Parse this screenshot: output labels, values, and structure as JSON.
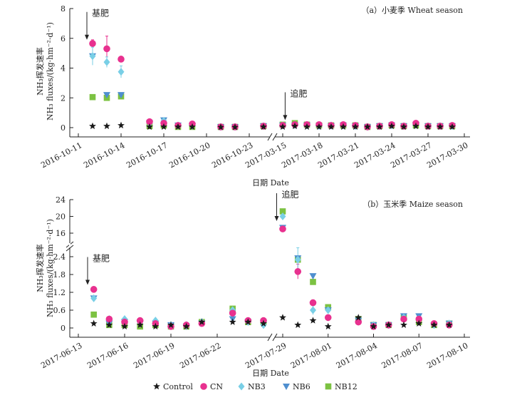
{
  "colors": {
    "Control": "#1a1a1a",
    "CN": "#e8318f",
    "NB3": "#79cfe6",
    "NB6": "#4f8fcf",
    "NB12": "#7cc242"
  },
  "legend": [
    "Control",
    "CN",
    "NB3",
    "NB6",
    "NB12"
  ],
  "chart_data": [
    {
      "type": "scatter",
      "title": "（a）小麦季 Wheat season",
      "xlabel": "日期 Date",
      "ylabel_lines": [
        "NH₃挥发速率",
        "NH₃ fluxes/(kg·hm⁻²·d⁻¹)"
      ],
      "yticks": [
        "0",
        "2",
        "4",
        "6",
        "8"
      ],
      "ylim": [
        0,
        8
      ],
      "xticks": [
        "2016-10-11",
        "2016-10-14",
        "2016-10-17",
        "2016-10-20",
        "2016-10-23",
        "2017-03-15",
        "2017-03-18",
        "2017-03-21",
        "2017-03-24",
        "2017-03-27",
        "2017-03-30"
      ],
      "segments": [
        {
          "start": "2016-10-11",
          "end": "2016-10-24"
        },
        {
          "start": "2017-03-15",
          "end": "2017-03-30"
        }
      ],
      "annotations": [
        {
          "text": "基肥",
          "date": "2016-10-11.6",
          "y": 7.2
        },
        {
          "text": "追肥",
          "date": "2017-03-15.2",
          "y": 1.8
        }
      ],
      "dates": [
        "2016-10-12",
        "2016-10-13",
        "2016-10-14",
        "2016-10-16",
        "2016-10-17",
        "2016-10-18",
        "2016-10-19",
        "2016-10-21",
        "2016-10-22",
        "2016-10-24",
        "2017-03-15",
        "2017-03-16",
        "2017-03-17",
        "2017-03-18",
        "2017-03-19",
        "2017-03-20",
        "2017-03-21",
        "2017-03-22",
        "2017-03-23",
        "2017-03-24",
        "2017-03-25",
        "2017-03-26",
        "2017-03-27",
        "2017-03-28",
        "2017-03-29"
      ],
      "series": [
        {
          "name": "Control",
          "values": [
            0.1,
            0.1,
            0.15,
            0.05,
            0.05,
            0.05,
            0.05,
            0.03,
            0.03,
            0.05,
            0.05,
            0.1,
            0.05,
            0.05,
            0.05,
            0.05,
            0.05,
            0.05,
            0.05,
            0.1,
            0.05,
            0.1,
            0.05,
            0.05,
            0.05
          ]
        },
        {
          "name": "CN",
          "values": [
            5.65,
            5.3,
            4.6,
            0.4,
            0.3,
            0.15,
            0.25,
            0.05,
            0.05,
            0.1,
            0.15,
            0.2,
            0.2,
            0.2,
            0.15,
            0.2,
            0.15,
            0.05,
            0.1,
            0.2,
            0.1,
            0.3,
            0.1,
            0.1,
            0.15
          ]
        },
        {
          "name": "NB3",
          "values": [
            4.8,
            4.4,
            3.75,
            0.3,
            0.45,
            0.15,
            0.2,
            0.05,
            0.05,
            0.1,
            0.15,
            0.2,
            0.15,
            0.1,
            0.15,
            0.15,
            0.1,
            0.05,
            0.1,
            0.15,
            0.1,
            0.2,
            0.1,
            0.1,
            0.1
          ]
        },
        {
          "name": "NB6",
          "values": [
            4.8,
            2.2,
            2.2,
            0.3,
            0.5,
            0.15,
            0.1,
            0.05,
            0.05,
            0.1,
            0.15,
            0.15,
            0.15,
            0.1,
            0.1,
            0.15,
            0.1,
            0.05,
            0.1,
            0.15,
            0.1,
            0.2,
            0.1,
            0.1,
            0.1
          ]
        },
        {
          "name": "NB12",
          "values": [
            2.05,
            2.0,
            2.1,
            0.1,
            0.15,
            0.05,
            0.05,
            0.05,
            0.05,
            0.1,
            0.2,
            0.3,
            0.2,
            0.15,
            0.15,
            0.15,
            0.15,
            0.05,
            0.1,
            0.15,
            0.1,
            0.15,
            0.1,
            0.1,
            0.1
          ]
        }
      ],
      "errors": {
        "CN": [
          0.25,
          0.85,
          0.2
        ],
        "NB3": [
          0.6,
          0.35,
          0.4
        ]
      }
    },
    {
      "type": "scatter",
      "title": "（b）玉米季 Maize season",
      "xlabel": "日期 Date",
      "ylabel_lines": [
        "NH₃挥发速率",
        "NH₃ fluxes/(kg·hm⁻²·d⁻¹)"
      ],
      "yticks_lower": [
        "0",
        "0.6",
        "1.2",
        "1.8",
        "2.4"
      ],
      "yticks_upper": [
        "16",
        "20",
        "24"
      ],
      "ylim_lower": [
        0,
        2.7
      ],
      "ylim_upper": [
        15.5,
        24
      ],
      "xticks": [
        "2017-06-13",
        "2017-06-16",
        "2017-06-19",
        "2017-06-22",
        "2017-07-29",
        "2017-08-01",
        "2017-08-04",
        "2017-08-07",
        "2017-08-10"
      ],
      "segments": [
        {
          "start": "2017-06-13",
          "end": "2017-06-25"
        },
        {
          "start": "2017-07-29",
          "end": "2017-08-10"
        }
      ],
      "annotations": [
        {
          "text": "基肥",
          "date": "2017-06-13.6",
          "y": 2.1
        },
        {
          "text": "追肥",
          "date": "2017-07-28.6",
          "y": 23.5
        }
      ],
      "dates": [
        "2017-06-14",
        "2017-06-15",
        "2017-06-16",
        "2017-06-17",
        "2017-06-18",
        "2017-06-19",
        "2017-06-20",
        "2017-06-21",
        "2017-06-23",
        "2017-06-24",
        "2017-06-25",
        "2017-07-29",
        "2017-07-30",
        "2017-07-31",
        "2017-08-01",
        "2017-08-03",
        "2017-08-04",
        "2017-08-05",
        "2017-08-06",
        "2017-08-07",
        "2017-08-08",
        "2017-08-09"
      ],
      "series": [
        {
          "name": "Control",
          "values": [
            0.15,
            0.1,
            0.05,
            0.1,
            0.05,
            0.1,
            0.05,
            0.2,
            0.2,
            0.2,
            0.15,
            0.35,
            0.1,
            0.25,
            0.05,
            0.35,
            0.05,
            0.1,
            0.1,
            0.15,
            0.1,
            0.1
          ]
        },
        {
          "name": "CN",
          "values": [
            1.3,
            0.3,
            0.2,
            0.25,
            0.15,
            0.05,
            0.1,
            0.15,
            0.5,
            0.25,
            0.25,
            17.0,
            1.9,
            0.85,
            0.35,
            0.2,
            0.05,
            0.1,
            0.3,
            0.3,
            0.15,
            0.1
          ]
        },
        {
          "name": "NB3",
          "values": [
            1.0,
            0.3,
            0.3,
            0.2,
            0.25,
            0.1,
            0.1,
            0.2,
            0.6,
            0.2,
            0.1,
            20.0,
            2.3,
            0.6,
            0.6,
            0.25,
            0.1,
            0.1,
            0.35,
            0.3,
            0.1,
            0.15
          ]
        },
        {
          "name": "NB6",
          "values": [
            1.0,
            0.15,
            0.2,
            0.15,
            0.15,
            0.1,
            0.05,
            0.15,
            0.3,
            0.2,
            0.15,
            17.3,
            2.35,
            1.75,
            0.6,
            0.25,
            0.1,
            0.1,
            0.4,
            0.4,
            0.1,
            0.15
          ]
        },
        {
          "name": "NB12",
          "values": [
            0.45,
            0.1,
            0.1,
            0.05,
            0.1,
            0.05,
            0.05,
            0.2,
            0.65,
            0.2,
            0.2,
            21.2,
            2.3,
            1.55,
            0.7,
            0.3,
            0.1,
            0.1,
            0.35,
            0.2,
            0.1,
            0.15
          ]
        }
      ],
      "errors": {
        "CN": [
          0.05,
          0,
          0,
          0,
          0,
          0,
          0,
          0,
          0,
          0,
          0,
          0,
          0.25,
          0.1
        ],
        "NB3": [
          0,
          0,
          0,
          0,
          0,
          0,
          0,
          0,
          0,
          0,
          0,
          0.4,
          0.4,
          0.15
        ]
      }
    }
  ]
}
